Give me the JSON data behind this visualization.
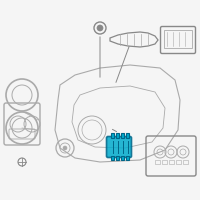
{
  "background_color": "#f5f5f5",
  "title": "",
  "fig_width": 2.0,
  "fig_height": 2.0,
  "dpi": 100,
  "highlight_color": "#00aacc",
  "line_color": "#aaaaaa",
  "dark_line": "#888888",
  "outline_color": "#999999"
}
